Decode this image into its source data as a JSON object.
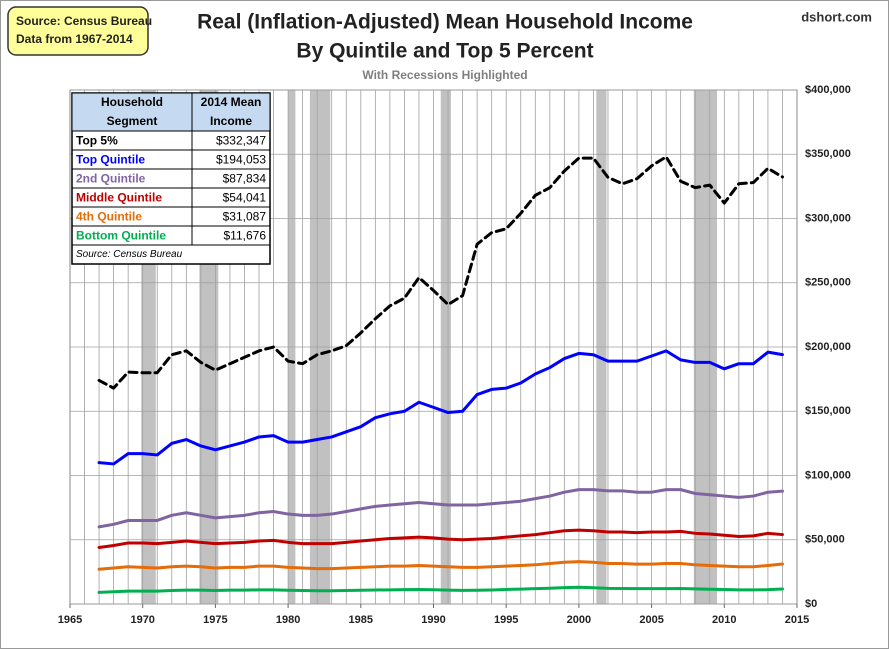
{
  "chart_data": {
    "type": "line",
    "title": [
      "Real (Inflation-Adjusted) Mean Household Income",
      "By Quintile and Top 5 Percent"
    ],
    "subtitle": "With Recessions Highlighted",
    "source_box": [
      "Source: Census Bureau",
      "Data from 1967-2014"
    ],
    "credit": "dshort.com",
    "x": [
      1967,
      1968,
      1969,
      1970,
      1971,
      1972,
      1973,
      1974,
      1975,
      1976,
      1977,
      1978,
      1979,
      1980,
      1981,
      1982,
      1983,
      1984,
      1985,
      1986,
      1987,
      1988,
      1989,
      1990,
      1991,
      1992,
      1993,
      1994,
      1995,
      1996,
      1997,
      1998,
      1999,
      2000,
      2001,
      2002,
      2003,
      2004,
      2005,
      2006,
      2007,
      2008,
      2009,
      2010,
      2011,
      2012,
      2013,
      2014
    ],
    "series": [
      {
        "name": "Top 5%",
        "color": "#000000",
        "dashed": true,
        "values": [
          174000,
          168000,
          180500,
          180000,
          180000,
          194000,
          197000,
          188000,
          182000,
          187000,
          192000,
          197000,
          200000,
          189000,
          187000,
          194000,
          197000,
          201000,
          211000,
          222000,
          232000,
          238000,
          254000,
          244000,
          233000,
          240000,
          280000,
          289000,
          292000,
          304000,
          318000,
          324000,
          337000,
          347000,
          347000,
          332000,
          327000,
          331000,
          341000,
          348000,
          329000,
          324000,
          326000,
          312000,
          327000,
          328000,
          339000,
          332347
        ]
      },
      {
        "name": "Top Quintile",
        "color": "#0000ff",
        "values": [
          110000,
          109000,
          117000,
          117000,
          116000,
          125000,
          128000,
          123000,
          120000,
          123000,
          126000,
          130000,
          131000,
          126000,
          126000,
          128000,
          130000,
          134000,
          138000,
          145000,
          148000,
          150000,
          157000,
          153000,
          149000,
          150000,
          163000,
          167000,
          168000,
          172000,
          179000,
          184000,
          191000,
          195000,
          194000,
          189000,
          189000,
          189000,
          193000,
          197000,
          190000,
          188000,
          188000,
          183000,
          187000,
          187000,
          196000,
          194053
        ]
      },
      {
        "name": "2nd Quintile",
        "color": "#8064a2",
        "values": [
          60000,
          62000,
          65000,
          65000,
          65000,
          69000,
          71000,
          69000,
          67000,
          68000,
          69000,
          71000,
          72000,
          70000,
          69000,
          69000,
          70000,
          72000,
          74000,
          76000,
          77000,
          78000,
          79000,
          78000,
          77000,
          77000,
          77000,
          78000,
          79000,
          80000,
          82000,
          84000,
          87000,
          89000,
          89000,
          88000,
          88000,
          87000,
          87000,
          89000,
          89000,
          86000,
          85000,
          84000,
          83000,
          84000,
          87000,
          87834
        ]
      },
      {
        "name": "Middle Quintile",
        "color": "#c00000",
        "values": [
          44000,
          45500,
          47500,
          47500,
          47000,
          48000,
          49000,
          48000,
          47000,
          47500,
          48000,
          49000,
          49500,
          48000,
          47000,
          47000,
          47000,
          48000,
          49000,
          50000,
          51000,
          51500,
          52000,
          51500,
          50500,
          50000,
          50500,
          51000,
          52000,
          53000,
          54000,
          55500,
          57000,
          57500,
          57000,
          56000,
          56000,
          55500,
          56000,
          56000,
          56500,
          55000,
          54500,
          53500,
          52500,
          53000,
          55000,
          54041
        ]
      },
      {
        "name": "4th Quintile",
        "color": "#e46c0a",
        "values": [
          27000,
          28000,
          29000,
          28500,
          28000,
          29000,
          29500,
          29000,
          28000,
          28500,
          28500,
          29500,
          29500,
          28500,
          28000,
          27500,
          27500,
          28000,
          28500,
          29000,
          29500,
          29500,
          30000,
          29500,
          29000,
          28500,
          28500,
          29000,
          29500,
          30000,
          30500,
          31500,
          32500,
          33000,
          32500,
          31500,
          31500,
          31000,
          31000,
          31500,
          31500,
          30500,
          30000,
          29500,
          29000,
          29000,
          30000,
          31087
        ]
      },
      {
        "name": "Bottom Quintile",
        "color": "#00b050",
        "values": [
          9000,
          9500,
          10000,
          10000,
          10000,
          10500,
          10800,
          10800,
          10500,
          10800,
          10800,
          11000,
          11000,
          10700,
          10500,
          10300,
          10300,
          10500,
          10700,
          10900,
          11000,
          11200,
          11300,
          11100,
          10800,
          10600,
          10700,
          10900,
          11300,
          11600,
          12000,
          12300,
          12700,
          13000,
          12600,
          12200,
          12100,
          12000,
          12000,
          12000,
          12100,
          11800,
          11500,
          11300,
          11000,
          11000,
          11200,
          11676
        ]
      }
    ],
    "recessions": [
      [
        1969.9,
        1970.9
      ],
      [
        1973.9,
        1975.2
      ],
      [
        1980,
        1980.5
      ],
      [
        1981.5,
        1982.9
      ],
      [
        1990.5,
        1991.2
      ],
      [
        2001.2,
        2001.9
      ],
      [
        2007.9,
        2009.5
      ]
    ],
    "recession_color": "#a6a6a6",
    "xlim": [
      1965,
      2015
    ],
    "xticks": [
      1965,
      1970,
      1975,
      1980,
      1985,
      1990,
      1995,
      2000,
      2005,
      2010,
      2015
    ],
    "ylim": [
      0,
      400000
    ],
    "yticks": [
      {
        "value": 0,
        "label": "$0"
      },
      {
        "value": 50000,
        "label": "$50,000"
      },
      {
        "value": 100000,
        "label": "$100,000"
      },
      {
        "value": 150000,
        "label": "$150,000"
      },
      {
        "value": 200000,
        "label": "$200,000"
      },
      {
        "value": 250000,
        "label": "$250,000"
      },
      {
        "value": 300000,
        "label": "$300,000"
      },
      {
        "value": 350000,
        "label": "$350,000"
      },
      {
        "value": 400000,
        "label": "$400,000"
      }
    ],
    "grid": true,
    "table": {
      "headers": [
        [
          "Household",
          "Segment"
        ],
        [
          "2014 Mean",
          "Income"
        ]
      ],
      "incomes": [
        "$332,347",
        "$194,053",
        "$87,834",
        "$54,041",
        "$31,087",
        "$11,676"
      ],
      "note": "Source: Census Bureau"
    }
  }
}
